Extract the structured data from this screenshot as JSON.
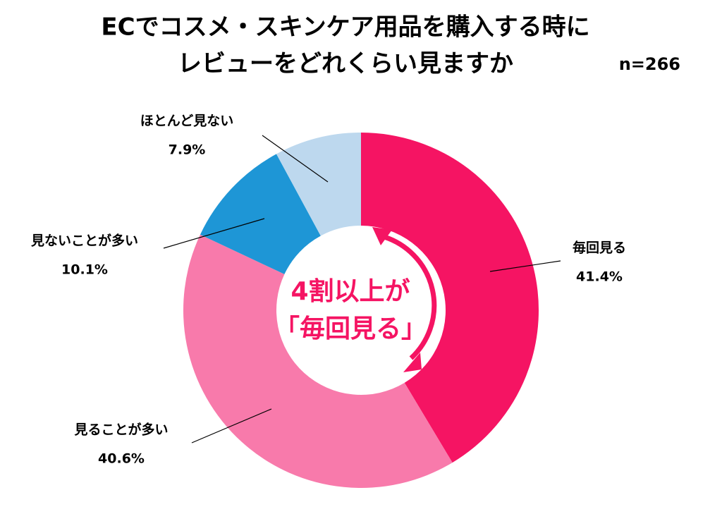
{
  "chart_data": {
    "type": "donut",
    "title": [
      "ECでコスメ・スキンケア用品を購入する時に",
      "レビューをどれくらい見ますか"
    ],
    "subtitle": "n=266",
    "annotation": [
      "4割以上が",
      "「毎回見る」"
    ],
    "categories": [
      "毎回見る",
      "見ることが多い",
      "見ないことが多い",
      "ほとんど見ない"
    ],
    "values": [
      41.4,
      40.6,
      10.1,
      7.9
    ],
    "value_labels": [
      "41.4%",
      "40.6%",
      "10.1%",
      "7.9%"
    ],
    "colors": [
      "#f51463",
      "#f87aab",
      "#1e96d6",
      "#bdd8ee"
    ]
  }
}
